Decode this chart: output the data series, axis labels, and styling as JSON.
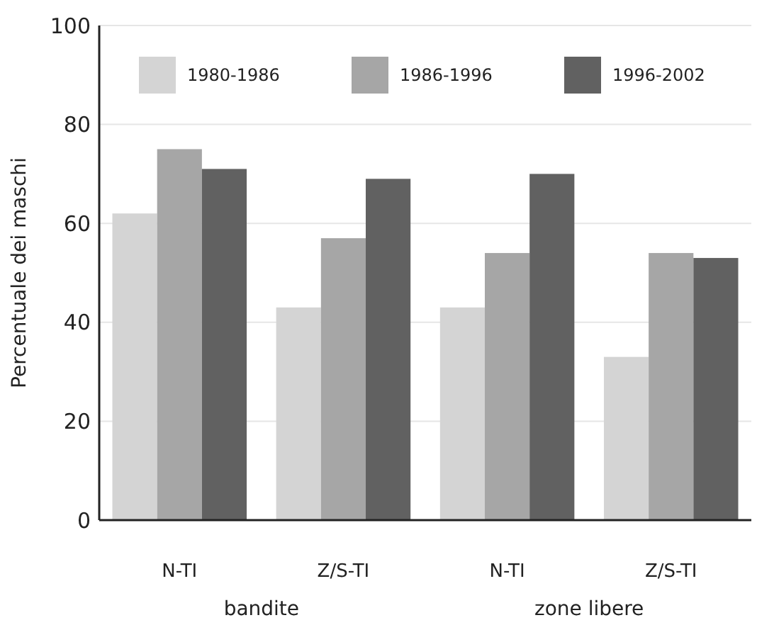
{
  "chart_data": {
    "type": "bar",
    "ylabel": "Percentuale dei maschi",
    "categories": [
      "N-TI",
      "Z/S-TI",
      "N-TI",
      "Z/S-TI"
    ],
    "series": [
      {
        "name": "1980-1986",
        "color": "#d4d4d4",
        "values": [
          62,
          43,
          43,
          33
        ]
      },
      {
        "name": "1986-1996",
        "color": "#a6a6a6",
        "values": [
          75,
          57,
          54,
          54
        ]
      },
      {
        "name": "1996-2002",
        "color": "#616161",
        "values": [
          71,
          69,
          70,
          53
        ]
      }
    ],
    "ylim": [
      0,
      100
    ],
    "yticks": [
      0,
      20,
      40,
      60,
      80,
      100
    ],
    "grid": "y",
    "legend": "top",
    "annotations": [
      "bandite",
      "zone libere"
    ]
  }
}
